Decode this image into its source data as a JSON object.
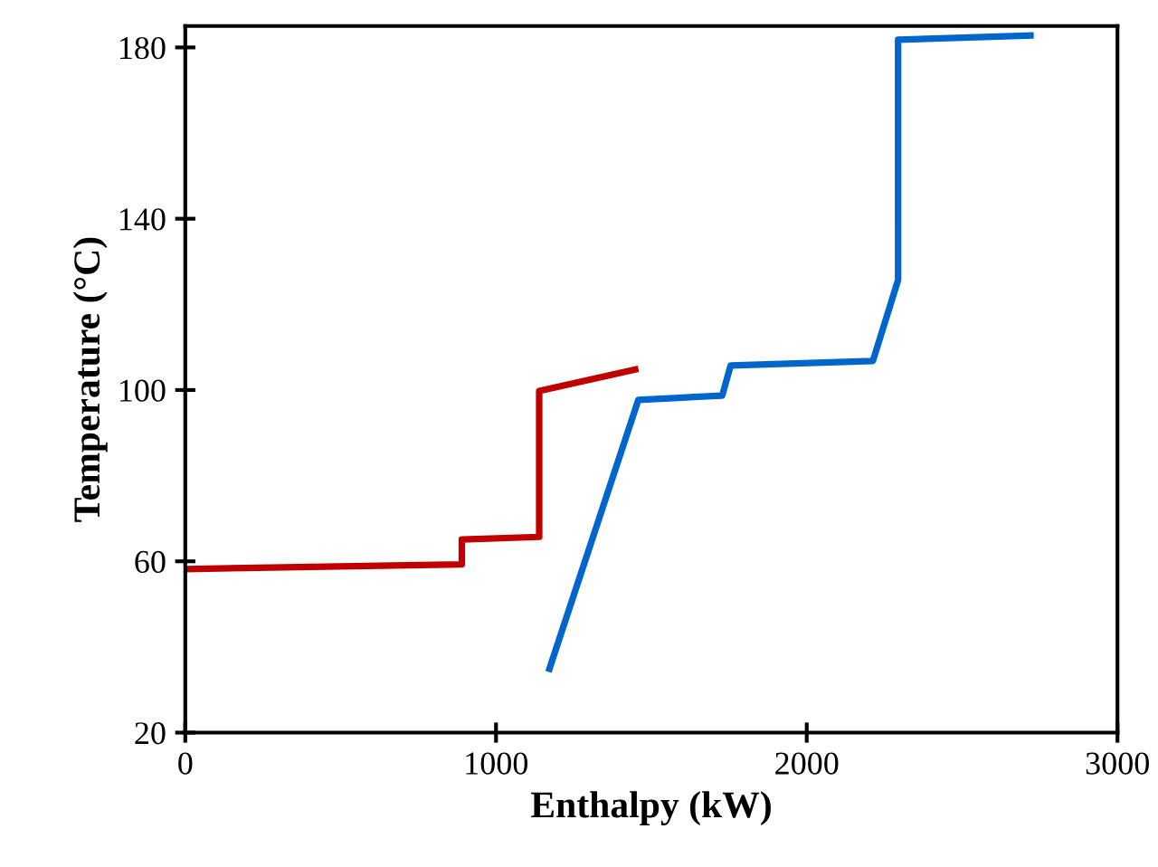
{
  "chart_data": {
    "type": "line",
    "xlabel": "Enthalpy (kW)",
    "ylabel": "Temperature (°C)",
    "xlim": [
      0,
      3000
    ],
    "xticks": [
      0,
      1000,
      2000,
      3000
    ],
    "ylim": [
      20,
      185
    ],
    "yticks": [
      20,
      60,
      100,
      140,
      180
    ],
    "grid": false,
    "marker": "none",
    "line_style": "solid",
    "series": [
      {
        "color": "#c00000",
        "x": [
          0,
          890,
          890,
          1139,
          1139,
          1448
        ],
        "values": [
          58.2,
          59.3,
          65.1,
          65.7,
          99.8,
          104.8
        ]
      },
      {
        "color": "#0066cc",
        "x": [
          1172,
          1458,
          1728,
          1755,
          2213,
          2294,
          2294,
          2720
        ],
        "values": [
          34.9,
          97.7,
          98.7,
          105.7,
          106.8,
          125.7,
          181.8,
          182.8
        ]
      }
    ]
  }
}
